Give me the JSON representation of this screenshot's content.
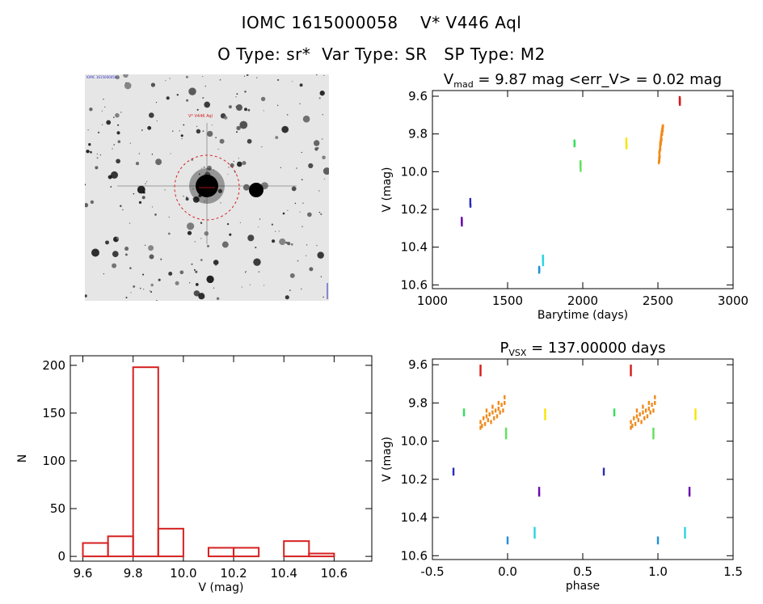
{
  "header": {
    "title": "IOMC 1615000058    V* V446 Aql",
    "subtitle": "O Type: sr*  Var Type: SR   SP Type: M2"
  },
  "image_panel": {
    "target_label": "V* V446 Aql",
    "corner_label": "IOMC 1615000058"
  },
  "colors": {
    "histogram": "#d62020",
    "marker_ring": "#d62020",
    "series_purple": "#6a0dad",
    "series_blue": "#2b2bbf",
    "series_cyan": "#2ad4e0",
    "series_teal": "#1f8fd6",
    "series_green": "#34e05a",
    "series_lightgreen": "#5ee05a",
    "series_yellow": "#f5e600",
    "series_orange": "#f08a1a",
    "series_red": "#d61a1a"
  },
  "chart_data": [
    {
      "id": "lightcurve",
      "type": "scatter",
      "title_parts": [
        "V",
        "mad",
        " = 9.87 mag <err_V> = 0.02 mag"
      ],
      "xlabel": "Barytime (days)",
      "ylabel": "V (mag)",
      "xlim": [
        1000,
        3000
      ],
      "ylim": [
        10.62,
        9.57
      ],
      "xticks": [
        1000,
        1500,
        2000,
        2500,
        3000
      ],
      "yticks": [
        9.6,
        9.8,
        10.0,
        10.2,
        10.4,
        10.6
      ],
      "series": [
        {
          "color": "#6a0dad",
          "points": [
            [
              1195,
              10.25
            ],
            [
              1195,
              10.27
            ],
            [
              1196,
              10.28
            ],
            [
              1196,
              10.26
            ]
          ]
        },
        {
          "color": "#2b2bbf",
          "points": [
            [
              1252,
              10.15
            ],
            [
              1252,
              10.17
            ],
            [
              1253,
              10.18
            ]
          ]
        },
        {
          "color": "#1f8fd6",
          "points": [
            [
              1710,
              10.51
            ],
            [
              1710,
              10.53
            ],
            [
              1711,
              10.52
            ]
          ]
        },
        {
          "color": "#2ad4e0",
          "points": [
            [
              1735,
              10.45
            ],
            [
              1735,
              10.47
            ],
            [
              1736,
              10.49
            ],
            [
              1736,
              10.46
            ]
          ]
        },
        {
          "color": "#34e05a",
          "points": [
            [
              1945,
              9.84
            ],
            [
              1945,
              9.86
            ],
            [
              1946,
              9.85
            ]
          ]
        },
        {
          "color": "#5ee05a",
          "points": [
            [
              1985,
              9.95
            ],
            [
              1985,
              9.97
            ],
            [
              1986,
              9.99
            ],
            [
              1986,
              9.96
            ]
          ]
        },
        {
          "color": "#f5e600",
          "points": [
            [
              2290,
              9.83
            ],
            [
              2290,
              9.85
            ],
            [
              2291,
              9.87
            ],
            [
              2291,
              9.86
            ]
          ]
        },
        {
          "color": "#f08a1a",
          "points": [
            [
              2508,
              9.93
            ],
            [
              2510,
              9.91
            ],
            [
              2512,
              9.89
            ],
            [
              2514,
              9.87
            ],
            [
              2516,
              9.86
            ],
            [
              2518,
              9.84
            ],
            [
              2520,
              9.83
            ],
            [
              2522,
              9.81
            ],
            [
              2524,
              9.8
            ],
            [
              2526,
              9.79
            ],
            [
              2528,
              9.78
            ],
            [
              2530,
              9.77
            ],
            [
              2532,
              9.76
            ],
            [
              2510,
              9.94
            ],
            [
              2512,
              9.92
            ],
            [
              2516,
              9.88
            ],
            [
              2520,
              9.85
            ],
            [
              2524,
              9.83
            ],
            [
              2528,
              9.8
            ],
            [
              2532,
              9.78
            ],
            [
              2506,
              9.95
            ],
            [
              2509,
              9.9
            ],
            [
              2515,
              9.85
            ],
            [
              2521,
              9.82
            ],
            [
              2527,
              9.79
            ],
            [
              2531,
              9.77
            ],
            [
              2534,
              9.76
            ]
          ]
        },
        {
          "color": "#d61a1a",
          "points": [
            [
              2645,
              9.61
            ],
            [
              2645,
              9.63
            ],
            [
              2646,
              9.64
            ],
            [
              2646,
              9.62
            ]
          ]
        }
      ]
    },
    {
      "id": "histogram",
      "type": "bar",
      "xlabel": "V (mag)",
      "ylabel": "N",
      "xlim": [
        9.55,
        10.75
      ],
      "ylim": [
        -5,
        210
      ],
      "xticks": [
        9.6,
        9.8,
        10.0,
        10.2,
        10.4,
        10.6
      ],
      "yticks": [
        0,
        50,
        100,
        150,
        200
      ],
      "bin_edges": [
        9.6,
        9.7,
        9.8,
        9.9,
        10.0,
        10.1,
        10.2,
        10.3,
        10.4,
        10.5,
        10.6
      ],
      "values": [
        14,
        21,
        198,
        29,
        0,
        9,
        9,
        0,
        16,
        3
      ]
    },
    {
      "id": "phased",
      "type": "scatter",
      "title_parts": [
        "P",
        "VSX",
        " = 137.00000 days"
      ],
      "xlabel": "phase",
      "ylabel": "V (mag)",
      "xlim": [
        -0.5,
        1.5
      ],
      "ylim": [
        10.62,
        9.57
      ],
      "xticks": [
        -0.5,
        0.0,
        0.5,
        1.0,
        1.5
      ],
      "yticks": [
        9.6,
        9.8,
        10.0,
        10.2,
        10.4,
        10.6
      ],
      "series": [
        {
          "color": "#6a0dad",
          "points": [
            [
              0.21,
              10.25
            ],
            [
              0.21,
              10.27
            ],
            [
              0.21,
              10.28
            ],
            [
              1.21,
              10.25
            ],
            [
              1.21,
              10.27
            ],
            [
              1.21,
              10.28
            ]
          ]
        },
        {
          "color": "#2b2bbf",
          "points": [
            [
              -0.36,
              10.15
            ],
            [
              -0.36,
              10.17
            ],
            [
              0.64,
              10.15
            ],
            [
              0.64,
              10.17
            ]
          ]
        },
        {
          "color": "#1f8fd6",
          "points": [
            [
              0.0,
              10.51
            ],
            [
              0.0,
              10.53
            ],
            [
              1.0,
              10.51
            ],
            [
              1.0,
              10.53
            ]
          ]
        },
        {
          "color": "#2ad4e0",
          "points": [
            [
              0.18,
              10.46
            ],
            [
              0.18,
              10.48
            ],
            [
              0.18,
              10.5
            ],
            [
              1.18,
              10.46
            ],
            [
              1.18,
              10.48
            ],
            [
              1.18,
              10.5
            ]
          ]
        },
        {
          "color": "#34e05a",
          "points": [
            [
              -0.29,
              9.84
            ],
            [
              -0.29,
              9.86
            ],
            [
              0.71,
              9.84
            ],
            [
              0.71,
              9.86
            ]
          ]
        },
        {
          "color": "#5ee05a",
          "points": [
            [
              -0.01,
              9.94
            ],
            [
              -0.01,
              9.96
            ],
            [
              -0.01,
              9.98
            ],
            [
              0.97,
              9.94
            ],
            [
              0.97,
              9.96
            ],
            [
              0.97,
              9.98
            ]
          ]
        },
        {
          "color": "#f5e600",
          "points": [
            [
              0.25,
              9.84
            ],
            [
              0.25,
              9.86
            ],
            [
              0.25,
              9.88
            ],
            [
              1.25,
              9.84
            ],
            [
              1.25,
              9.86
            ],
            [
              1.25,
              9.88
            ]
          ]
        },
        {
          "color": "#f08a1a",
          "points": [
            [
              -0.18,
              9.9
            ],
            [
              -0.17,
              9.92
            ],
            [
              -0.16,
              9.88
            ],
            [
              -0.15,
              9.91
            ],
            [
              -0.14,
              9.87
            ],
            [
              -0.13,
              9.89
            ],
            [
              -0.12,
              9.86
            ],
            [
              -0.11,
              9.9
            ],
            [
              -0.1,
              9.85
            ],
            [
              -0.09,
              9.88
            ],
            [
              -0.08,
              9.84
            ],
            [
              -0.07,
              9.87
            ],
            [
              -0.06,
              9.83
            ],
            [
              -0.05,
              9.85
            ],
            [
              -0.04,
              9.81
            ],
            [
              -0.03,
              9.84
            ],
            [
              -0.02,
              9.8
            ],
            [
              -0.02,
              9.77
            ],
            [
              -0.1,
              9.82
            ],
            [
              -0.06,
              9.8
            ],
            [
              -0.14,
              9.84
            ],
            [
              -0.18,
              9.93
            ],
            [
              0.82,
              9.9
            ],
            [
              0.83,
              9.92
            ],
            [
              0.84,
              9.88
            ],
            [
              0.85,
              9.91
            ],
            [
              0.86,
              9.87
            ],
            [
              0.87,
              9.89
            ],
            [
              0.88,
              9.86
            ],
            [
              0.89,
              9.9
            ],
            [
              0.9,
              9.85
            ],
            [
              0.91,
              9.88
            ],
            [
              0.92,
              9.84
            ],
            [
              0.93,
              9.87
            ],
            [
              0.94,
              9.83
            ],
            [
              0.95,
              9.85
            ],
            [
              0.96,
              9.81
            ],
            [
              0.97,
              9.84
            ],
            [
              0.98,
              9.8
            ],
            [
              0.98,
              9.77
            ],
            [
              0.9,
              9.82
            ],
            [
              0.94,
              9.8
            ],
            [
              0.86,
              9.84
            ],
            [
              0.82,
              9.93
            ]
          ]
        },
        {
          "color": "#d61a1a",
          "points": [
            [
              -0.18,
              9.61
            ],
            [
              -0.18,
              9.63
            ],
            [
              -0.18,
              9.65
            ],
            [
              0.82,
              9.61
            ],
            [
              0.82,
              9.63
            ],
            [
              0.82,
              9.65
            ]
          ]
        }
      ]
    }
  ]
}
